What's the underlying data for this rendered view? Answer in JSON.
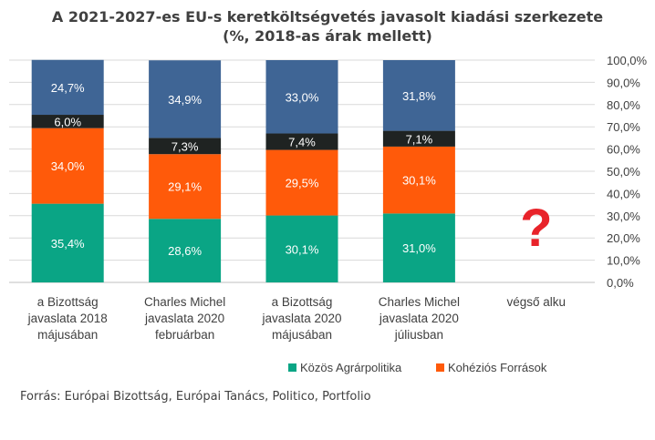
{
  "chart_data": {
    "type": "bar",
    "stacked": true,
    "title": "A 2021-2027-es EU-s keretköltségvetés javasolt kiadási szerkezete",
    "subtitle": "(%, 2018-as árak mellett)",
    "categories": [
      [
        "a Bizottság",
        "javaslata 2018",
        "májusában"
      ],
      [
        "Charles Michel",
        "javaslata 2020",
        "februárban"
      ],
      [
        "a Bizottság",
        "javaslata 2020",
        "májusában"
      ],
      [
        "Charles Michel",
        "javaslata 2020",
        "júliusban"
      ],
      [
        "végső alku"
      ]
    ],
    "series": [
      {
        "name": "Közös Agrárpolitika",
        "color": "#0aa585",
        "values": [
          35.4,
          28.6,
          30.1,
          31.0,
          null
        ],
        "labels": [
          "35,4%",
          "28,6%",
          "30,1%",
          "31,0%",
          ""
        ]
      },
      {
        "name": "Kohéziós Források",
        "color": "#ff5a0a",
        "values": [
          34.0,
          29.1,
          29.5,
          30.1,
          null
        ],
        "labels": [
          "34,0%",
          "29,1%",
          "29,5%",
          "30,1%",
          ""
        ]
      },
      {
        "color": "#1f2322",
        "values": [
          6.0,
          7.3,
          7.4,
          7.1,
          null
        ],
        "labels": [
          "6,0%",
          "7,3%",
          "7,4%",
          "7,1%",
          ""
        ]
      },
      {
        "color": "#3f6595",
        "values": [
          24.7,
          34.9,
          33.0,
          31.8,
          null
        ],
        "labels": [
          "24,7%",
          "34,9%",
          "33,0%",
          "31,8%",
          ""
        ]
      }
    ],
    "ylim": [
      0,
      100
    ],
    "yticks": [
      "0,0%",
      "10,0%",
      "20,0%",
      "30,0%",
      "40,0%",
      "50,0%",
      "60,0%",
      "70,0%",
      "80,0%",
      "90,0%",
      "100,0%"
    ],
    "yaxis_position": "right",
    "grid": true,
    "legend": [
      "Közös Agrárpolitika",
      "Kohéziós Források"
    ],
    "legend_position": "bottom-right",
    "annotation": {
      "text": "?",
      "color": "#e8232a",
      "category_index": 4
    }
  },
  "source": "Forrás: Európai Bizottság, Európai Tanács, Politico, Portfolio"
}
